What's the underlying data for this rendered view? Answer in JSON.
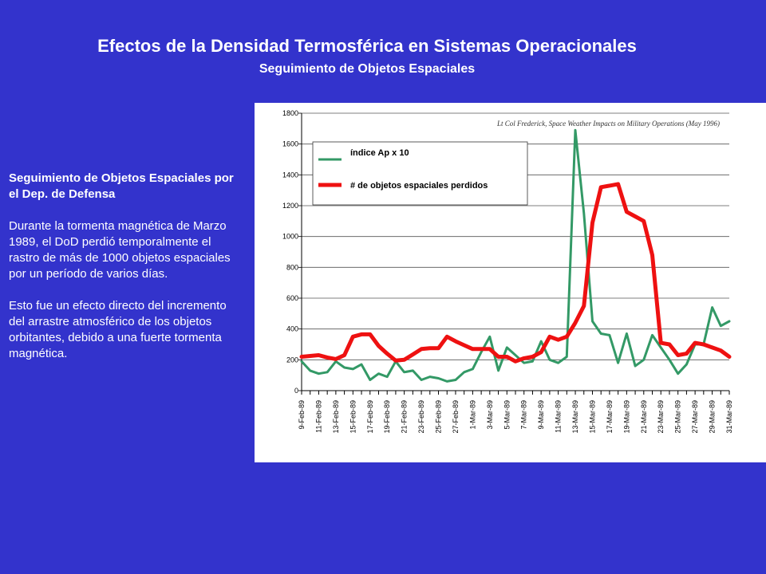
{
  "header": {
    "title": "Efectos de la Densidad Termosférica en Sistemas Operacionales",
    "subtitle": "Seguimiento de Objetos Espaciales"
  },
  "sidebar": {
    "heading": "Seguimiento de Objetos Espaciales por el Dep. de Defensa",
    "paragraph1": "Durante la tormenta magnética de Marzo 1989, el DoD perdió temporalmente el rastro de más de 1000 objetos espaciales por un período de varios días.",
    "paragraph2": "Esto fue un efecto directo del incremento del arrastre atmosférico de los objetos orbitantes, debido a una fuerte tormenta magnética."
  },
  "colors": {
    "background": "#3333cc",
    "ap_series": "#339966",
    "lost_series": "#ee1111"
  },
  "chart_data": {
    "type": "line",
    "annotation": "Lt Col Frederick, Space Weather Impacts on Military Operations (May 1996)",
    "xlabel": "",
    "ylabel": "",
    "ylim": [
      0,
      1800
    ],
    "yticks": [
      0,
      200,
      400,
      600,
      800,
      1000,
      1200,
      1400,
      1600,
      1800
    ],
    "grid": "horizontal",
    "legend_placement": "top-left",
    "x": [
      "9-Feb-89",
      "10-Feb-89",
      "11-Feb-89",
      "12-Feb-89",
      "13-Feb-89",
      "14-Feb-89",
      "15-Feb-89",
      "16-Feb-89",
      "17-Feb-89",
      "18-Feb-89",
      "19-Feb-89",
      "20-Feb-89",
      "21-Feb-89",
      "22-Feb-89",
      "23-Feb-89",
      "24-Feb-89",
      "25-Feb-89",
      "26-Feb-89",
      "27-Feb-89",
      "28-Feb-89",
      "1-Mar-89",
      "2-Mar-89",
      "3-Mar-89",
      "4-Mar-89",
      "5-Mar-89",
      "6-Mar-89",
      "7-Mar-89",
      "8-Mar-89",
      "9-Mar-89",
      "10-Mar-89",
      "11-Mar-89",
      "12-Mar-89",
      "13-Mar-89",
      "14-Mar-89",
      "15-Mar-89",
      "16-Mar-89",
      "17-Mar-89",
      "18-Mar-89",
      "19-Mar-89",
      "20-Mar-89",
      "21-Mar-89",
      "22-Mar-89",
      "23-Mar-89",
      "24-Mar-89",
      "25-Mar-89",
      "26-Mar-89",
      "27-Mar-89",
      "28-Mar-89",
      "29-Mar-89",
      "30-Mar-89",
      "31-Mar-89"
    ],
    "x_tick_labels": [
      "9-Feb-89",
      "11-Feb-89",
      "13-Feb-89",
      "15-Feb-89",
      "17-Feb-89",
      "19-Feb-89",
      "21-Feb-89",
      "23-Feb-89",
      "25-Feb-89",
      "27-Feb-89",
      "1-Mar-89",
      "3-Mar-89",
      "5-Mar-89",
      "7-Mar-89",
      "9-Mar-89",
      "11-Mar-89",
      "13-Mar-89",
      "15-Mar-89",
      "17-Mar-89",
      "19-Mar-89",
      "21-Mar-89",
      "23-Mar-89",
      "25-Mar-89",
      "27-Mar-89",
      "29-Mar-89",
      "31-Mar-89"
    ],
    "series": [
      {
        "name": "índice Ap x 10",
        "color": "#339966",
        "values": [
          190,
          130,
          110,
          120,
          190,
          150,
          140,
          170,
          70,
          110,
          90,
          190,
          120,
          130,
          70,
          90,
          80,
          60,
          70,
          120,
          140,
          250,
          350,
          130,
          280,
          230,
          180,
          190,
          320,
          200,
          180,
          220,
          1690,
          1150,
          450,
          370,
          360,
          180,
          370,
          160,
          200,
          360,
          280,
          200,
          110,
          170,
          300,
          300,
          540,
          420,
          450
        ]
      },
      {
        "name": "# de objetos espaciales perdidos",
        "color": "#ee1111",
        "values": [
          220,
          225,
          230,
          215,
          205,
          230,
          350,
          365,
          365,
          290,
          240,
          195,
          200,
          235,
          270,
          275,
          275,
          350,
          320,
          295,
          270,
          270,
          270,
          220,
          220,
          190,
          210,
          220,
          250,
          350,
          330,
          350,
          440,
          550,
          1090,
          1320,
          1330,
          1340,
          1160,
          1130,
          1100,
          880,
          310,
          300,
          230,
          240,
          310,
          300,
          280,
          260,
          220
        ]
      }
    ]
  }
}
